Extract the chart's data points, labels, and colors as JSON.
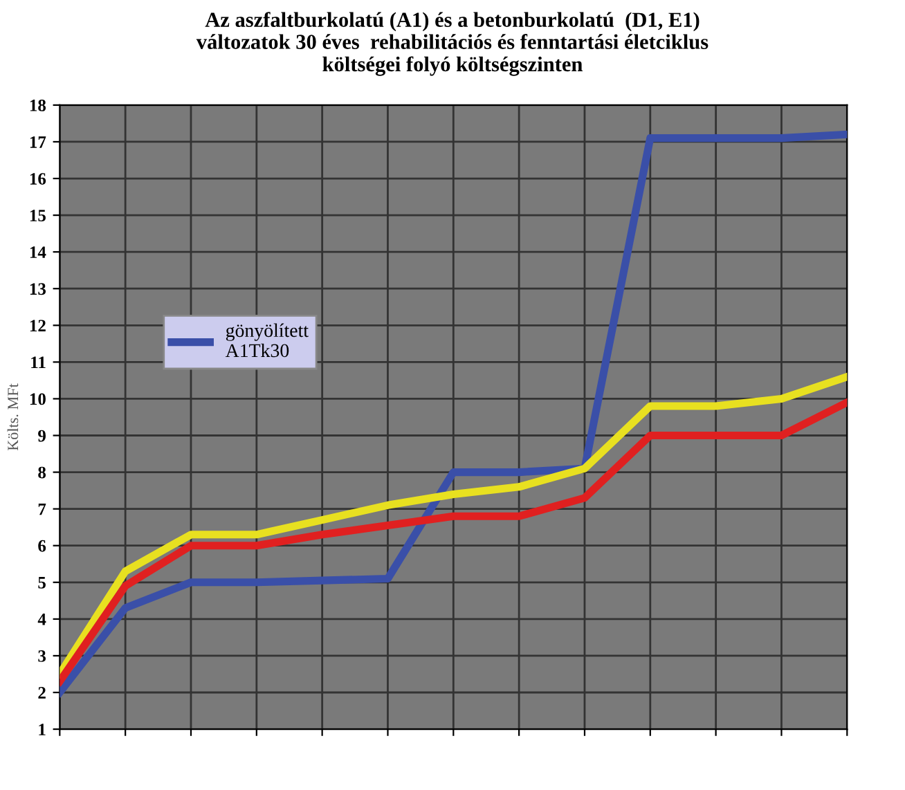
{
  "chart_data": {
    "type": "line",
    "title": "Az aszfaltburkolatú (A1) és a betonburkolatú  (D1, E1)\nváltozatok 30 éves  rehabilitációs és fenntartási életciklus\nköltségei folyó költségszinten",
    "ylabel": "Költs. MFt",
    "categories": [
      null,
      null,
      null,
      null,
      null,
      null,
      null,
      null,
      null,
      null,
      null,
      null,
      null
    ],
    "series": [
      {
        "name": "gönyölített\nA1Tk30",
        "color": "#3a4fa8",
        "values": [
          2.0,
          4.3,
          5.0,
          5.0,
          5.05,
          5.1,
          8.0,
          8.0,
          8.1,
          17.1,
          17.1,
          17.1,
          17.2
        ]
      },
      {
        "color": "#e8e020",
        "values": [
          2.5,
          5.3,
          6.3,
          6.3,
          6.7,
          7.1,
          7.4,
          7.6,
          8.1,
          9.8,
          9.8,
          10.0,
          10.6
        ]
      },
      {
        "color": "#e02020",
        "values": [
          2.3,
          4.9,
          6.0,
          6.0,
          6.3,
          6.55,
          6.8,
          6.8,
          7.3,
          9.0,
          9.0,
          9.0,
          9.9
        ]
      }
    ],
    "ylim": [
      1,
      18
    ],
    "yticks": [
      1,
      2,
      3,
      4,
      5,
      6,
      7,
      8,
      9,
      10,
      11,
      12,
      13,
      14,
      15,
      16,
      17,
      18
    ],
    "grid": true,
    "legend": "left",
    "line_style": "solid",
    "marker": "none"
  }
}
